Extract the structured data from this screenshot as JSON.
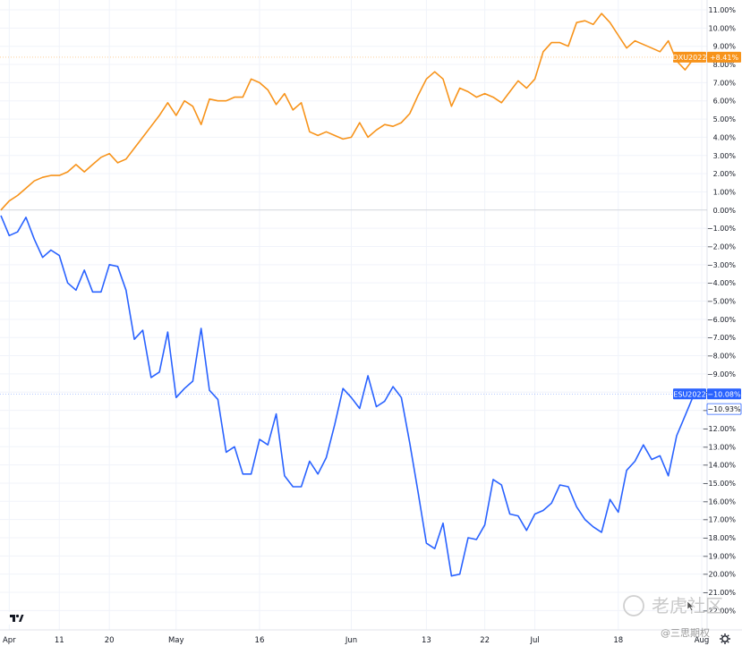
{
  "chart_data": {
    "type": "line",
    "title": "",
    "xlabel": "",
    "ylabel": "",
    "ylim": [
      -22.5,
      11.5
    ],
    "ytick_values": [
      11,
      10,
      9,
      8,
      7,
      6,
      5,
      4,
      3,
      2,
      1,
      0,
      -1,
      -2,
      -3,
      -4,
      -5,
      -6,
      -7,
      -8,
      -9,
      -10,
      -11,
      -12,
      -13,
      -14,
      -15,
      -16,
      -17,
      -18,
      -19,
      -20,
      -21,
      -22
    ],
    "ytick_labels": [
      "11.00%",
      "10.00%",
      "9.00%",
      "8.00%",
      "7.00%",
      "6.00%",
      "5.00%",
      "4.00%",
      "3.00%",
      "2.00%",
      "1.00%",
      "0.00%",
      "−1.00%",
      "−2.00%",
      "−3.00%",
      "−4.00%",
      "−5.00%",
      "−6.00%",
      "−7.00%",
      "−8.00%",
      "−9.00%",
      "−10.00%",
      "−11.00%",
      "−12.00%",
      "−13.00%",
      "−14.00%",
      "−15.00%",
      "−16.00%",
      "−17.00%",
      "−18.00%",
      "−19.00%",
      "−20.00%",
      "−21.00%",
      "−22.00%"
    ],
    "x_ticks": [
      {
        "label": "Apr",
        "index": 1
      },
      {
        "label": "11",
        "index": 7
      },
      {
        "label": "20",
        "index": 13
      },
      {
        "label": "May",
        "index": 21
      },
      {
        "label": "16",
        "index": 31
      },
      {
        "label": "Jun",
        "index": 42
      },
      {
        "label": "13",
        "index": 51
      },
      {
        "label": "22",
        "index": 58
      },
      {
        "label": "Jul",
        "index": 64
      },
      {
        "label": "18",
        "index": 74
      },
      {
        "label": "Aug",
        "index": 84
      }
    ],
    "x_count": 85,
    "grid": true,
    "series": [
      {
        "name": "DXU2022",
        "color": "#f7931a",
        "last_label": "+8.41%",
        "values": [
          0.0,
          0.5,
          0.8,
          1.2,
          1.6,
          1.8,
          1.9,
          1.9,
          2.1,
          2.5,
          2.1,
          2.5,
          2.9,
          3.1,
          2.6,
          2.8,
          3.4,
          4.0,
          4.6,
          5.2,
          5.9,
          5.2,
          6.0,
          5.7,
          4.7,
          6.1,
          6.0,
          6.0,
          6.2,
          6.2,
          7.2,
          7.0,
          6.6,
          5.8,
          6.4,
          5.5,
          5.9,
          4.3,
          4.1,
          4.3,
          4.1,
          3.9,
          4.0,
          4.8,
          4.0,
          4.4,
          4.7,
          4.6,
          4.8,
          5.3,
          6.3,
          7.2,
          7.6,
          7.2,
          5.7,
          6.7,
          6.5,
          6.2,
          6.4,
          6.2,
          5.9,
          6.5,
          7.1,
          6.7,
          7.2,
          8.7,
          9.2,
          9.2,
          9.0,
          10.3,
          10.4,
          10.2,
          10.8,
          10.3,
          9.6,
          8.9,
          9.3,
          9.1,
          8.9,
          8.7,
          9.3,
          8.2,
          7.7,
          8.3,
          8.4
        ]
      },
      {
        "name": "ESU2022",
        "color": "#2962ff",
        "last_label": "−10.08%",
        "values": [
          -0.3,
          -1.4,
          -1.2,
          -0.4,
          -1.6,
          -2.6,
          -2.2,
          -2.5,
          -4.0,
          -4.4,
          -3.3,
          -4.5,
          -4.5,
          -3.0,
          -3.1,
          -4.4,
          -7.1,
          -6.6,
          -9.2,
          -8.9,
          -6.7,
          -10.3,
          -9.8,
          -9.4,
          -6.5,
          -9.9,
          -10.4,
          -13.3,
          -13.0,
          -14.5,
          -14.5,
          -12.6,
          -12.9,
          -11.2,
          -14.6,
          -15.2,
          -15.2,
          -13.8,
          -14.5,
          -13.6,
          -11.8,
          -9.8,
          -10.3,
          -10.9,
          -9.1,
          -10.8,
          -10.5,
          -9.7,
          -10.3,
          -12.8,
          -15.5,
          -18.3,
          -18.6,
          -17.2,
          -20.1,
          -20.0,
          -18.0,
          -18.1,
          -17.3,
          -14.8,
          -15.1,
          -16.7,
          -16.8,
          -17.6,
          -16.7,
          -16.5,
          -16.1,
          -15.1,
          -15.2,
          -16.3,
          -17.0,
          -17.4,
          -17.7,
          -15.9,
          -16.6,
          -14.3,
          -13.8,
          -12.9,
          -13.7,
          -13.5,
          -14.6,
          -12.4,
          -11.3,
          -10.2,
          -10.1
        ]
      }
    ],
    "extra_price_label": {
      "text": "−10.93%",
      "value": -10.93,
      "color": "#2962ff"
    }
  },
  "logo": {
    "text": "TV"
  },
  "watermark": {
    "text": "老虎社区",
    "subtext": "@三思期权"
  }
}
